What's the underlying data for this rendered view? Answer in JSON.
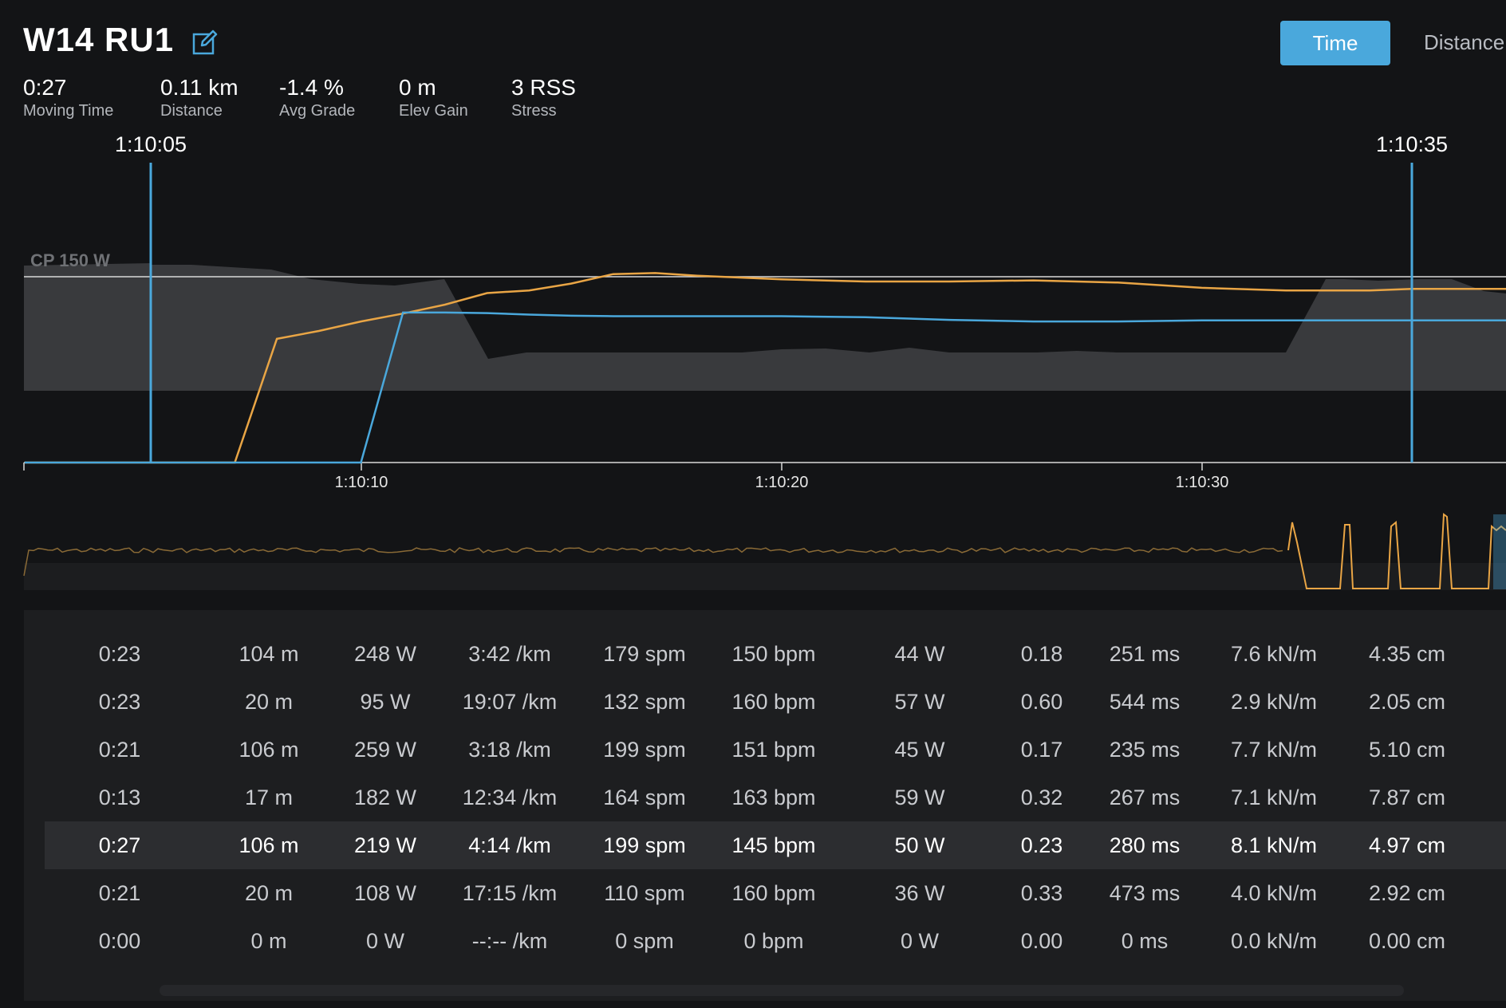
{
  "activity": {
    "title": "W14 RU1"
  },
  "toggle": {
    "time": "Time",
    "distance": "Distance"
  },
  "stats": [
    {
      "value": "0:27",
      "label": "Moving Time"
    },
    {
      "value": "0.11 km",
      "label": "Distance"
    },
    {
      "value": "-1.4 %",
      "label": "Avg Grade"
    },
    {
      "value": "0 m",
      "label": "Elev Gain"
    },
    {
      "value": "3 RSS",
      "label": "Stress"
    }
  ],
  "chart": {
    "cp_label": "CP 150 W",
    "selection_start": "1:10:05",
    "selection_end": "1:10:35",
    "x_ticks": [
      "1:10:10",
      "1:10:20",
      "1:10:30"
    ],
    "colors": {
      "orange": "#e9a545",
      "blue": "#4aa8dc",
      "area": "#3b3c3f"
    }
  },
  "chart_data": {
    "type": "line",
    "x": [
      "1:10:02",
      "1:10:05",
      "1:10:07",
      "1:10:08",
      "1:10:09",
      "1:10:10",
      "1:10:11",
      "1:10:12",
      "1:10:13",
      "1:10:14",
      "1:10:15",
      "1:10:16",
      "1:10:17",
      "1:10:18",
      "1:10:20",
      "1:10:22",
      "1:10:24",
      "1:10:26",
      "1:10:28",
      "1:10:30",
      "1:10:32",
      "1:10:34",
      "1:10:35",
      "1:10:38"
    ],
    "series": [
      {
        "values": [
          0,
          0,
          0,
          235,
          250,
          268,
          283,
          300,
          322,
          327,
          340,
          358,
          360,
          355,
          348,
          344,
          344,
          346,
          342,
          332,
          327,
          327,
          330,
          330
        ]
      },
      {
        "values": [
          0,
          0,
          0,
          0,
          0,
          0,
          285,
          285,
          284,
          281,
          279,
          278,
          278,
          278,
          278,
          276,
          271,
          268,
          268,
          270,
          270,
          270,
          270,
          270
        ]
      }
    ],
    "cp_value": 150
  },
  "table": {
    "rows": [
      [
        "0:23",
        "104 m",
        "248 W",
        "3:42 /km",
        "179 spm",
        "150 bpm",
        "44 W",
        "0.18",
        "251 ms",
        "7.6 kN/m",
        "4.35 cm"
      ],
      [
        "0:23",
        "20 m",
        "95 W",
        "19:07 /km",
        "132 spm",
        "160 bpm",
        "57 W",
        "0.60",
        "544 ms",
        "2.9 kN/m",
        "2.05 cm"
      ],
      [
        "0:21",
        "106 m",
        "259 W",
        "3:18 /km",
        "199 spm",
        "151 bpm",
        "45 W",
        "0.17",
        "235 ms",
        "7.7 kN/m",
        "5.10 cm"
      ],
      [
        "0:13",
        "17 m",
        "182 W",
        "12:34 /km",
        "164 spm",
        "163 bpm",
        "59 W",
        "0.32",
        "267 ms",
        "7.1 kN/m",
        "7.87 cm"
      ],
      [
        "0:27",
        "106 m",
        "219 W",
        "4:14 /km",
        "199 spm",
        "145 bpm",
        "50 W",
        "0.23",
        "280 ms",
        "8.1 kN/m",
        "4.97 cm"
      ],
      [
        "0:21",
        "20 m",
        "108 W",
        "17:15 /km",
        "110 spm",
        "160 bpm",
        "36 W",
        "0.33",
        "473 ms",
        "4.0 kN/m",
        "2.92 cm"
      ],
      [
        "0:00",
        "0 m",
        "0 W",
        "--:-- /km",
        "0 spm",
        "0 bpm",
        "0 W",
        "0.00",
        "0 ms",
        "0.0 kN/m",
        "0.00 cm"
      ]
    ],
    "selected_index": 4
  }
}
